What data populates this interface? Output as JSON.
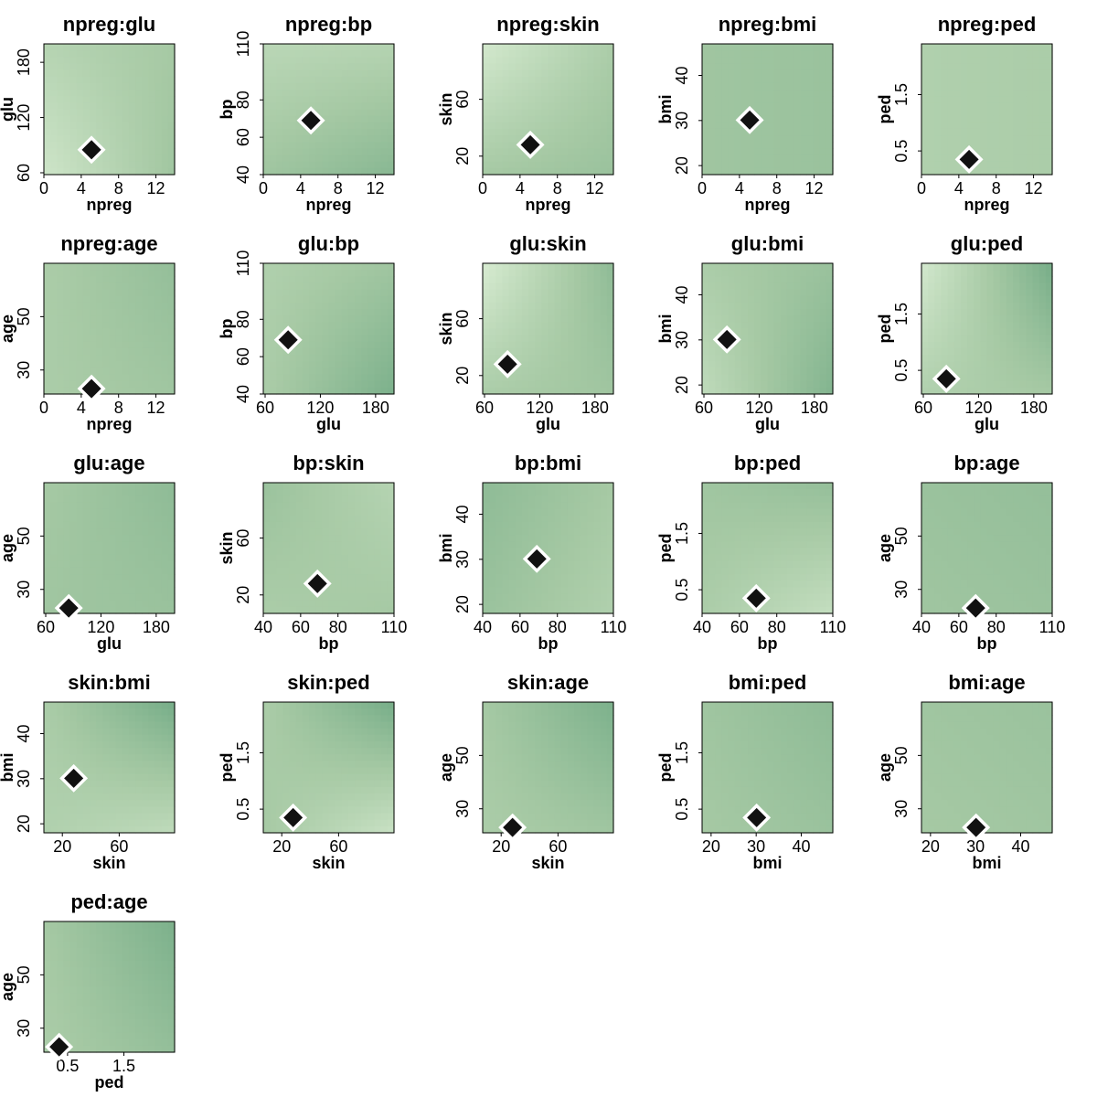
{
  "chart_data": {
    "type": "heatmap",
    "layout": "5 columns x 5 rows grid of pairwise interaction panels",
    "marker": {
      "shape": "diamond",
      "fill": "#111111",
      "stroke": "#ffffff"
    },
    "colors": {
      "light": "#d8ecd2",
      "mid": "#a6c9a4",
      "dark": "#6aa681"
    },
    "variables": {
      "npreg": {
        "lim": [
          0,
          14
        ],
        "ticks": [
          0,
          4,
          8,
          12
        ],
        "labels": [
          "0",
          "4",
          "8",
          "12"
        ]
      },
      "glu": {
        "lim": [
          58,
          200
        ],
        "ticks": [
          60,
          120,
          180
        ],
        "labels": [
          "60",
          "120",
          "180"
        ]
      },
      "bp": {
        "lim": [
          40,
          110
        ],
        "ticks": [
          40,
          60,
          80,
          110
        ],
        "labels": [
          "40",
          "60",
          "80",
          "110"
        ]
      },
      "skin": {
        "lim": [
          7,
          99
        ],
        "ticks": [
          20,
          60
        ],
        "labels": [
          "20",
          "60"
        ]
      },
      "bmi": {
        "lim": [
          18,
          47
        ],
        "ticks": [
          20,
          30,
          40
        ],
        "labels": [
          "20",
          "30",
          "40"
        ]
      },
      "ped": {
        "lim": [
          0.08,
          2.4
        ],
        "ticks": [
          0.5,
          1.5
        ],
        "labels": [
          "0.5",
          "1.5"
        ]
      },
      "age": {
        "lim": [
          21,
          70
        ],
        "ticks": [
          30,
          50
        ],
        "labels": [
          "30",
          "50"
        ]
      }
    },
    "point": {
      "npreg": 5.1,
      "glu": 85,
      "bp": 69,
      "skin": 28,
      "bmi": 30.1,
      "ped": 0.35,
      "age": 23
    },
    "panels": [
      {
        "title": "npreg:glu",
        "x": "npreg",
        "y": "glu",
        "shade": [
          0.35,
          0.5,
          0.1,
          0.55
        ]
      },
      {
        "title": "npreg:bp",
        "x": "npreg",
        "y": "bp",
        "shade": [
          0.3,
          0.35,
          0.55,
          0.75
        ]
      },
      {
        "title": "npreg:skin",
        "x": "npreg",
        "y": "skin",
        "shade": [
          0.05,
          0.45,
          0.5,
          0.6
        ]
      },
      {
        "title": "npreg:bmi",
        "x": "npreg",
        "y": "bmi",
        "shade": [
          0.55,
          0.6,
          0.55,
          0.6
        ]
      },
      {
        "title": "npreg:ped",
        "x": "npreg",
        "y": "ped",
        "shade": [
          0.4,
          0.45,
          0.4,
          0.45
        ]
      },
      {
        "title": "npreg:age",
        "x": "npreg",
        "y": "age",
        "shade": [
          0.45,
          0.65,
          0.45,
          0.55
        ]
      },
      {
        "title": "glu:bp",
        "x": "glu",
        "y": "bp",
        "shade": [
          0.4,
          0.55,
          0.45,
          0.85
        ]
      },
      {
        "title": "glu:skin",
        "x": "glu",
        "y": "skin",
        "shade": [
          0.0,
          0.7,
          0.45,
          0.55
        ]
      },
      {
        "title": "glu:bmi",
        "x": "glu",
        "y": "bmi",
        "shade": [
          0.45,
          0.6,
          0.25,
          0.8
        ]
      },
      {
        "title": "glu:ped",
        "x": "glu",
        "y": "ped",
        "shade": [
          0.05,
          0.9,
          0.4,
          0.5
        ]
      },
      {
        "title": "glu:age",
        "x": "glu",
        "y": "age",
        "shade": [
          0.5,
          0.7,
          0.55,
          0.6
        ]
      },
      {
        "title": "bp:skin",
        "x": "bp",
        "y": "skin",
        "shade": [
          0.6,
          0.35,
          0.45,
          0.5
        ]
      },
      {
        "title": "bp:bmi",
        "x": "bp",
        "y": "bmi",
        "shade": [
          0.7,
          0.5,
          0.6,
          0.4
        ]
      },
      {
        "title": "bp:ped",
        "x": "bp",
        "y": "ped",
        "shade": [
          0.55,
          0.65,
          0.45,
          0.2
        ]
      },
      {
        "title": "bp:age",
        "x": "bp",
        "y": "age",
        "shade": [
          0.6,
          0.65,
          0.55,
          0.6
        ]
      },
      {
        "title": "skin:bmi",
        "x": "skin",
        "y": "bmi",
        "shade": [
          0.45,
          0.9,
          0.4,
          0.25
        ]
      },
      {
        "title": "skin:ped",
        "x": "skin",
        "y": "ped",
        "shade": [
          0.45,
          0.9,
          0.5,
          0.15
        ]
      },
      {
        "title": "skin:age",
        "x": "skin",
        "y": "age",
        "shade": [
          0.5,
          0.85,
          0.45,
          0.55
        ]
      },
      {
        "title": "bmi:ped",
        "x": "bmi",
        "y": "ped",
        "shade": [
          0.55,
          0.7,
          0.5,
          0.6
        ]
      },
      {
        "title": "bmi:age",
        "x": "bmi",
        "y": "age",
        "shade": [
          0.55,
          0.6,
          0.5,
          0.55
        ]
      },
      {
        "title": "ped:age",
        "x": "ped",
        "y": "age",
        "shade": [
          0.5,
          0.85,
          0.45,
          0.65
        ]
      }
    ]
  }
}
